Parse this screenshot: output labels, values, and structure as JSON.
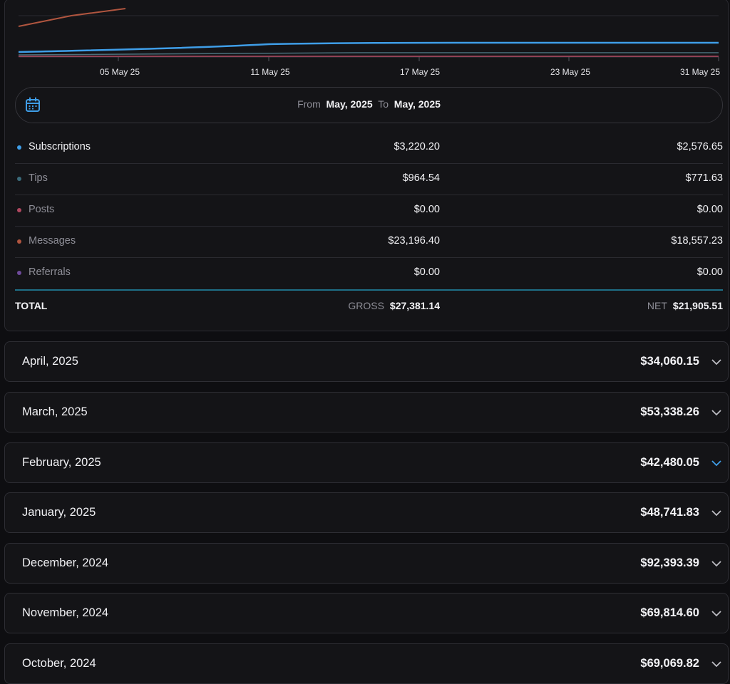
{
  "chart": {
    "x_ticks": [
      "05 May 25",
      "11 May 25",
      "17 May 25",
      "23 May 25",
      "31 May 25"
    ],
    "series_colors": {
      "subscriptions": "#3f9ee8",
      "tips": "#3b6b7a",
      "posts": "#b04860",
      "messages": "#b0553f",
      "referrals": "#6e4a9a"
    }
  },
  "range": {
    "from_label": "From",
    "from_value": "May, 2025",
    "to_label": "To",
    "to_value": "May, 2025"
  },
  "breakdown": [
    {
      "label": "Subscriptions",
      "gross": "$3,220.20",
      "net": "$2,576.65",
      "color": "#3f9ee8"
    },
    {
      "label": "Tips",
      "gross": "$964.54",
      "net": "$771.63",
      "color": "#3b6b7a"
    },
    {
      "label": "Posts",
      "gross": "$0.00",
      "net": "$0.00",
      "color": "#b04860"
    },
    {
      "label": "Messages",
      "gross": "$23,196.40",
      "net": "$18,557.23",
      "color": "#b0553f"
    },
    {
      "label": "Referrals",
      "gross": "$0.00",
      "net": "$0.00",
      "color": "#6e4a9a"
    }
  ],
  "total": {
    "label": "TOTAL",
    "gross_caption": "GROSS",
    "gross_value": "$27,381.14",
    "net_caption": "NET",
    "net_value": "$21,905.51"
  },
  "months": [
    {
      "label": "April, 2025",
      "amount": "$34,060.15"
    },
    {
      "label": "March, 2025",
      "amount": "$53,338.26"
    },
    {
      "label": "February, 2025",
      "amount": "$42,480.05"
    },
    {
      "label": "January, 2025",
      "amount": "$48,741.83"
    },
    {
      "label": "December, 2024",
      "amount": "$92,393.39"
    },
    {
      "label": "November, 2024",
      "amount": "$69,814.60"
    },
    {
      "label": "October, 2024",
      "amount": "$69,069.82"
    }
  ],
  "colors": {
    "accent": "#3f9ee8",
    "chevron_default": "#bdbdc4",
    "chevron_active": "#3f9ee8"
  }
}
